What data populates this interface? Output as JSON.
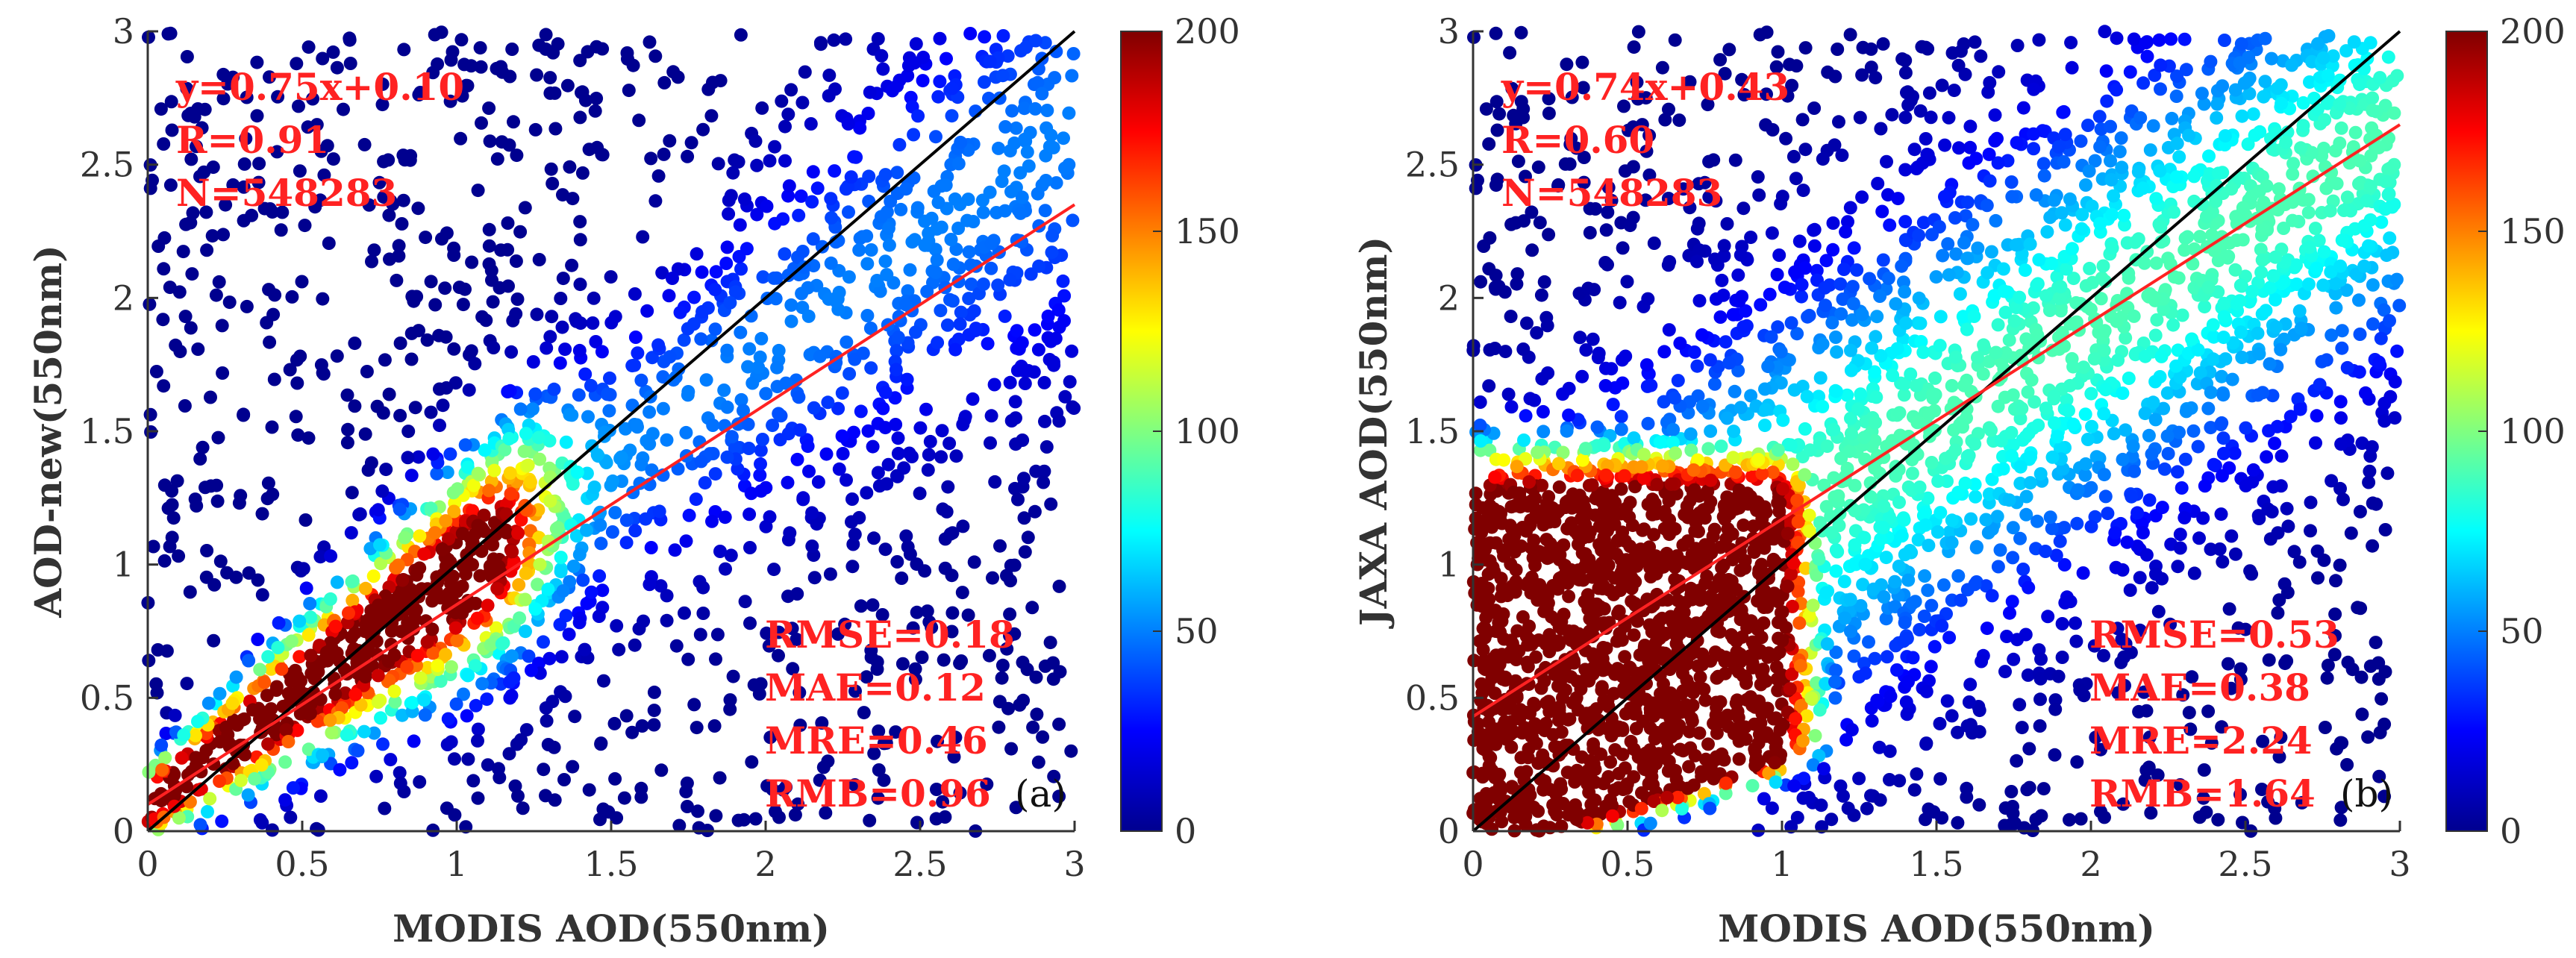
{
  "chart_data": [
    {
      "type": "scatter",
      "subtype": "density-scatter",
      "panel_label": "(a)",
      "xlabel": "MODIS AOD(550nm)",
      "ylabel": "AOD-new(550nm)",
      "xlim": [
        0,
        3
      ],
      "ylim": [
        0,
        3
      ],
      "x_ticks": [
        "0",
        "0.5",
        "1",
        "1.5",
        "2",
        "2.5",
        "3"
      ],
      "y_ticks": [
        "0",
        "0.5",
        "1",
        "1.5",
        "2",
        "2.5",
        "3"
      ],
      "fit_line": {
        "slope": 0.75,
        "intercept": 0.1,
        "color": "#ff2222"
      },
      "one_to_one_line": {
        "slope": 1,
        "intercept": 0,
        "color": "#000000"
      },
      "stats_top": [
        "y=0.75x+0.10",
        "R=0.91",
        "N=548283"
      ],
      "stats_bottom": [
        "RMSE=0.18",
        "MAE=0.12",
        "MRE=0.46",
        "RMB=0.96"
      ],
      "colorbar": {
        "min": 0,
        "max": 200,
        "ticks": [
          "0",
          "50",
          "100",
          "150",
          "200"
        ]
      },
      "density_model": {
        "core_len": 1.2,
        "spread": 0.09,
        "fan": 0.16,
        "dense_x_max": 1.05
      }
    },
    {
      "type": "scatter",
      "subtype": "density-scatter",
      "panel_label": "(b)",
      "xlabel": "MODIS AOD(550nm)",
      "ylabel": "JAXA AOD(550nm)",
      "xlim": [
        0,
        3
      ],
      "ylim": [
        0,
        3
      ],
      "x_ticks": [
        "0",
        "0.5",
        "1",
        "1.5",
        "2",
        "2.5",
        "3"
      ],
      "y_ticks": [
        "0",
        "0.5",
        "1",
        "1.5",
        "2",
        "2.5",
        "3"
      ],
      "fit_line": {
        "slope": 0.74,
        "intercept": 0.43,
        "color": "#ff2222"
      },
      "one_to_one_line": {
        "slope": 1,
        "intercept": 0,
        "color": "#000000"
      },
      "stats_top": [
        "y=0.74x+0.43",
        "R=0.60",
        "N=548283"
      ],
      "stats_bottom": [
        "RMSE=0.53",
        "MAE=0.38",
        "MRE=2.24",
        "RMB=1.64"
      ],
      "colorbar": {
        "min": 0,
        "max": 200,
        "ticks": [
          "0",
          "50",
          "100",
          "150",
          "200"
        ]
      },
      "density_model": {
        "core_x_max": 0.95,
        "core_y_max": 1.2,
        "spread": 0.35,
        "fan": 0.4
      }
    }
  ],
  "colors": {
    "jet": [
      "#00008f",
      "#0000ff",
      "#0080ff",
      "#00ffff",
      "#80ff80",
      "#ffff00",
      "#ff8000",
      "#ff0000",
      "#800000"
    ],
    "fit_line": "#ff2222",
    "identity_line": "#000000",
    "stat_text": "#ff2222"
  }
}
